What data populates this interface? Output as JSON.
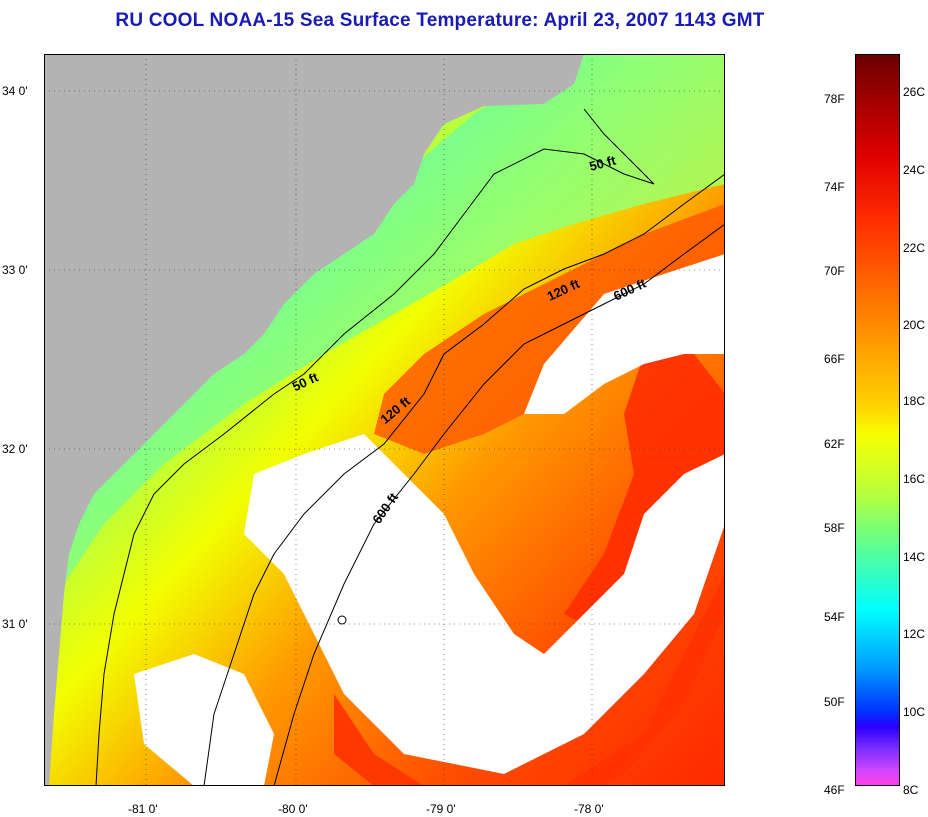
{
  "title": "RU COOL  NOAA-15  Sea Surface Temperature:  April 23, 2007 1143 GMT",
  "map": {
    "lat_labels": [
      "34 0'",
      "33 0'",
      "32 0'",
      "31 0'"
    ],
    "lon_labels": [
      "-81 0'",
      "-80 0'",
      "-79 0'",
      "-78 0'"
    ],
    "contour_labels": [
      "50 ft",
      "120 ft",
      "600 ft",
      "50 ft",
      "120 ft",
      "600 ft"
    ],
    "colors": {
      "land": "#b3b3b3",
      "cloud": "#ffffff",
      "contour": "#000000"
    }
  },
  "colorbar": {
    "fahrenheit": [
      "78F",
      "74F",
      "70F",
      "66F",
      "62F",
      "58F",
      "54F",
      "50F",
      "46F"
    ],
    "celsius": [
      "26C",
      "24C",
      "22C",
      "20C",
      "18C",
      "16C",
      "14C",
      "12C",
      "10C",
      "8C"
    ]
  }
}
